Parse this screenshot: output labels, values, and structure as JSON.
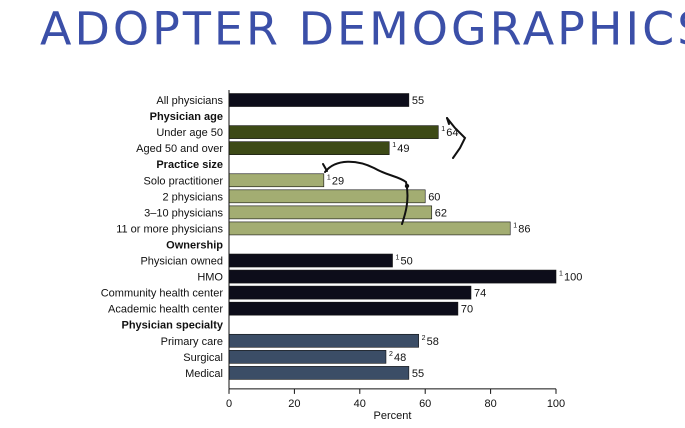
{
  "headline": "ADOPTER DEMOGRAPHICS",
  "chart_data": {
    "type": "bar",
    "orientation": "horizontal",
    "xlabel": "Percent",
    "xlim": [
      0,
      100
    ],
    "xticks": [
      0,
      20,
      40,
      60,
      80,
      100
    ],
    "rows": [
      {
        "label": "All physicians",
        "kind": "bar",
        "value": 55,
        "marker": "",
        "color": "#0d0d1a"
      },
      {
        "label": "Physician age",
        "kind": "header"
      },
      {
        "label": "Under age 50",
        "kind": "bar",
        "value": 64,
        "marker": "1",
        "color": "#3d4a16"
      },
      {
        "label": "Aged 50 and over",
        "kind": "bar",
        "value": 49,
        "marker": "1",
        "color": "#3d4a16"
      },
      {
        "label": "Practice size",
        "kind": "header"
      },
      {
        "label": "Solo practitioner",
        "kind": "bar",
        "value": 29,
        "marker": "1",
        "color": "#a3ad72"
      },
      {
        "label": "2 physicians",
        "kind": "bar",
        "value": 60,
        "marker": "",
        "color": "#a3ad72"
      },
      {
        "label": "3–10 physicians",
        "kind": "bar",
        "value": 62,
        "marker": "",
        "color": "#a3ad72"
      },
      {
        "label": "11 or more physicians",
        "kind": "bar",
        "value": 86,
        "marker": "1",
        "color": "#a3ad72"
      },
      {
        "label": "Ownership",
        "kind": "header"
      },
      {
        "label": "Physician owned",
        "kind": "bar",
        "value": 50,
        "marker": "1",
        "color": "#0d0d1a"
      },
      {
        "label": "HMO",
        "kind": "bar",
        "value": 100,
        "marker": "1",
        "color": "#0d0d1a"
      },
      {
        "label": "Community health center",
        "kind": "bar",
        "value": 74,
        "marker": "",
        "color": "#0d0d1a"
      },
      {
        "label": "Academic health center",
        "kind": "bar",
        "value": 70,
        "marker": "",
        "color": "#0d0d1a"
      },
      {
        "label": "Physician specialty",
        "kind": "header"
      },
      {
        "label": "Primary care",
        "kind": "bar",
        "value": 58,
        "marker": "2",
        "color": "#3b4d66"
      },
      {
        "label": "Surgical",
        "kind": "bar",
        "value": 48,
        "marker": "2",
        "color": "#3b4d66"
      },
      {
        "label": "Medical",
        "kind": "bar",
        "value": 55,
        "marker": "",
        "color": "#3b4d66"
      }
    ]
  }
}
